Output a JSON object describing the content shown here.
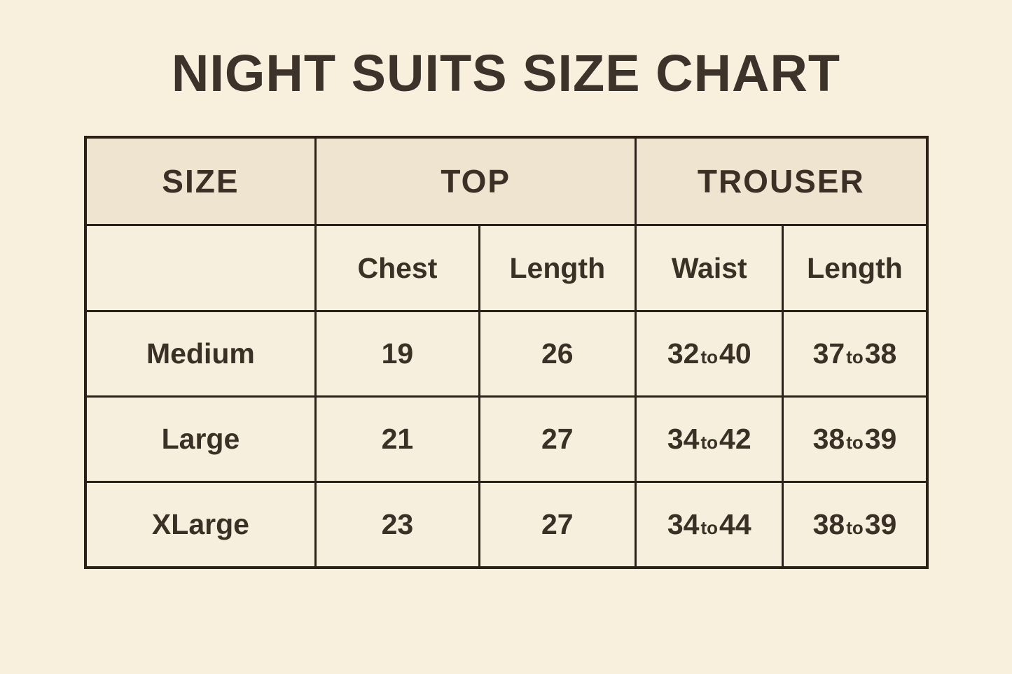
{
  "page": {
    "title": "NIGHT SUITS SIZE CHART",
    "background_color": "#f8efdc",
    "header_cell_color": "#eee4cf",
    "body_cell_color": "#f7efdd",
    "border_color": "#2b2119",
    "text_color": "#3b3026"
  },
  "table": {
    "range_word": "to",
    "header_groups": [
      {
        "label": "SIZE"
      },
      {
        "label": "TOP"
      },
      {
        "label": "TROUSER"
      }
    ],
    "sub_headers": [
      "",
      "Chest",
      "Length",
      "Waist",
      "Length"
    ],
    "rows": [
      {
        "size": "Medium",
        "chest": "19",
        "top_length": "26",
        "waist": {
          "from": "32",
          "to": "40"
        },
        "trouser_length": {
          "from": "37",
          "to": "38"
        }
      },
      {
        "size": "Large",
        "chest": "21",
        "top_length": "27",
        "waist": {
          "from": "34",
          "to": "42"
        },
        "trouser_length": {
          "from": "38",
          "to": "39"
        }
      },
      {
        "size": "XLarge",
        "chest": "23",
        "top_length": "27",
        "waist": {
          "from": "34",
          "to": "44"
        },
        "trouser_length": {
          "from": "38",
          "to": "39"
        }
      }
    ]
  }
}
